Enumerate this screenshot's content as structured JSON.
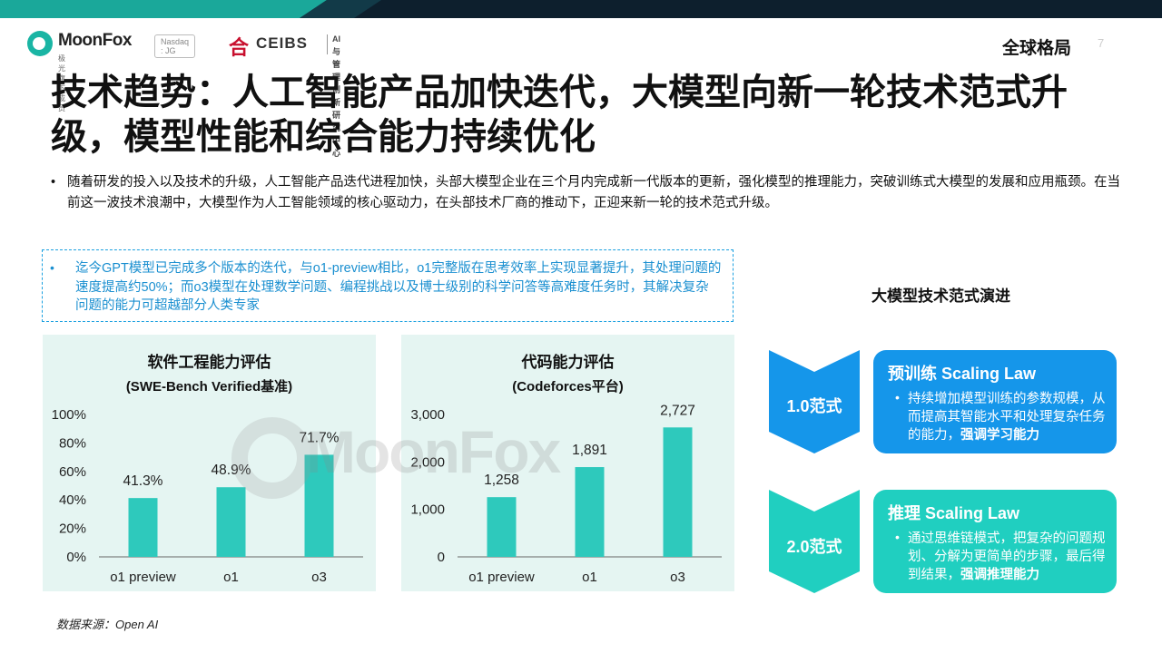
{
  "header": {
    "brand": "MoonFox",
    "brand_sub": "极光旗下成员",
    "nasdaq": "Nasdaq : JG",
    "partner": "CEIBS",
    "partner_sub_1": "AI与管理创新",
    "partner_sub_2": "研究中心",
    "section": "全球格局",
    "page": "7"
  },
  "title": "技术趋势：人工智能产品加快迭代，大模型向新一轮技术范式升级，模型性能和综合能力持续优化",
  "intro": "随着研发的投入以及技术的升级，人工智能产品迭代进程加快，头部大模型企业在三个月内完成新一代版本的更新，强化模型的推理能力，突破训练式大模型的发展和应用瓶颈。在当前这一波技术浪潮中，大模型作为人工智能领域的核心驱动力，在头部技术厂商的推动下，正迎来新一轮的技术范式升级。",
  "callout": "迄今GPT模型已完成多个版本的迭代，与o1-preview相比，o1完整版在思考效率上实现显著提升，其处理问题的速度提高约50%；而o3模型在处理数学问题、编程挑战以及博士级别的科学问答等高难度任务时，其解决复杂问题的能力可超越部分人类专家",
  "watermark": "MoonFox",
  "colors": {
    "bar": "#2ec9bc",
    "panel": "#e5f5f2",
    "blue": "#1596ea",
    "teal": "#20cfc0",
    "callout": "#1a8fd0"
  },
  "chart_data": [
    {
      "type": "bar",
      "title": "软件工程能力评估",
      "subtitle": "(SWE-Bench Verified基准)",
      "categories": [
        "o1 preview",
        "o1",
        "o3"
      ],
      "values": [
        41.3,
        48.9,
        71.7
      ],
      "value_labels": [
        "41.3%",
        "48.9%",
        "71.7%"
      ],
      "yticks": [
        "0%",
        "20%",
        "40%",
        "60%",
        "80%",
        "100%"
      ],
      "ylim": [
        0,
        100
      ]
    },
    {
      "type": "bar",
      "title": "代码能力评估",
      "subtitle": "(Codeforces平台)",
      "categories": [
        "o1 preview",
        "o1",
        "o3"
      ],
      "values": [
        1258,
        1891,
        2727
      ],
      "value_labels": [
        "1,258",
        "1,891",
        "2,727"
      ],
      "yticks": [
        "0",
        "1,000",
        "2,000",
        "3,000"
      ],
      "ylim": [
        0,
        3000
      ]
    }
  ],
  "paradigm": {
    "heading": "大模型技术范式演进",
    "stages": [
      {
        "label": "1.0范式",
        "title": "预训练 Scaling Law",
        "body": "持续增加模型训练的参数规模，从而提高其智能水平和处理复杂任务的能力，",
        "emphasis": "强调学习能力"
      },
      {
        "label": "2.0范式",
        "title": "推理 Scaling Law",
        "body": "通过思维链模式，把复杂的问题规划、分解为更简单的步骤，最后得到结果，",
        "emphasis": "强调推理能力"
      }
    ]
  },
  "source": "数据来源：Open AI"
}
